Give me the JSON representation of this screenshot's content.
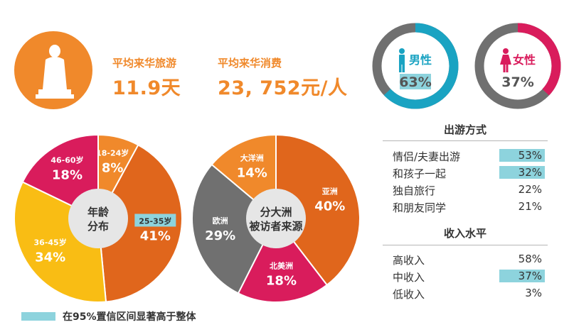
{
  "stats": {
    "days_label": "平均来华旅游",
    "days_value": "11.9天",
    "spend_label": "平均来华消费",
    "spend_value": "23, 752元/人"
  },
  "gender": {
    "male": {
      "label": "男性",
      "value": "63%",
      "fraction": 0.63,
      "color": "#1aa3c2",
      "highlight": true
    },
    "female": {
      "label": "女性",
      "value": "37%",
      "fraction": 0.37,
      "color": "#d91c5c",
      "highlight": false
    },
    "track_color": "#707070"
  },
  "age_chart": {
    "center_lines": [
      "年龄",
      "分布"
    ],
    "segments": [
      {
        "label": "18-24岁",
        "value": "8%",
        "pct": 8,
        "color": "#f0892b"
      },
      {
        "label": "25-35岁",
        "value": "41%",
        "pct": 41,
        "color": "#e0661c",
        "highlight": true
      },
      {
        "label": "36-45岁",
        "value": "34%",
        "pct": 34,
        "color": "#f9bd14"
      },
      {
        "label": "46-60岁",
        "value": "18%",
        "pct": 18,
        "color": "#d91c5c"
      }
    ]
  },
  "continent_chart": {
    "center_lines": [
      "分大洲",
      "被访者来源"
    ],
    "segments": [
      {
        "label": "亚洲",
        "value": "40%",
        "pct": 40,
        "color": "#e0661c"
      },
      {
        "label": "北美洲",
        "value": "18%",
        "pct": 18,
        "color": "#d91c5c"
      },
      {
        "label": "欧洲",
        "value": "29%",
        "pct": 29,
        "color": "#707070"
      },
      {
        "label": "大洋洲",
        "value": "14%",
        "pct": 14,
        "color": "#f0892b"
      }
    ]
  },
  "travel_mode": {
    "title": "出游方式",
    "rows": [
      {
        "label": "情侣/夫妻出游",
        "value": "53%",
        "highlight": true
      },
      {
        "label": "和孩子一起",
        "value": "32%",
        "highlight": true
      },
      {
        "label": "独自旅行",
        "value": "22%",
        "highlight": false
      },
      {
        "label": "和朋友同学",
        "value": "21%",
        "highlight": false
      }
    ]
  },
  "income": {
    "title": "收入水平",
    "rows": [
      {
        "label": "高收入",
        "value": "58%",
        "highlight": false
      },
      {
        "label": "中收入",
        "value": "37%",
        "highlight": true
      },
      {
        "label": "低收入",
        "value": "3%",
        "highlight": false
      }
    ]
  },
  "legend": {
    "text": "在95%置信区间显著高于整体",
    "color": "#8dd3dd"
  },
  "chart_data": [
    {
      "type": "pie",
      "categories": [
        "18-24岁",
        "25-35岁",
        "36-45岁",
        "46-60岁"
      ],
      "values": [
        8,
        41,
        34,
        18
      ]
    },
    {
      "type": "pie",
      "categories": [
        "亚洲",
        "北美洲",
        "欧洲",
        "大洋洲"
      ],
      "values": [
        40,
        18,
        29,
        14
      ]
    },
    {
      "type": "pie",
      "categories": [
        "男性",
        "女性"
      ],
      "values": [
        63,
        37
      ]
    }
  ]
}
